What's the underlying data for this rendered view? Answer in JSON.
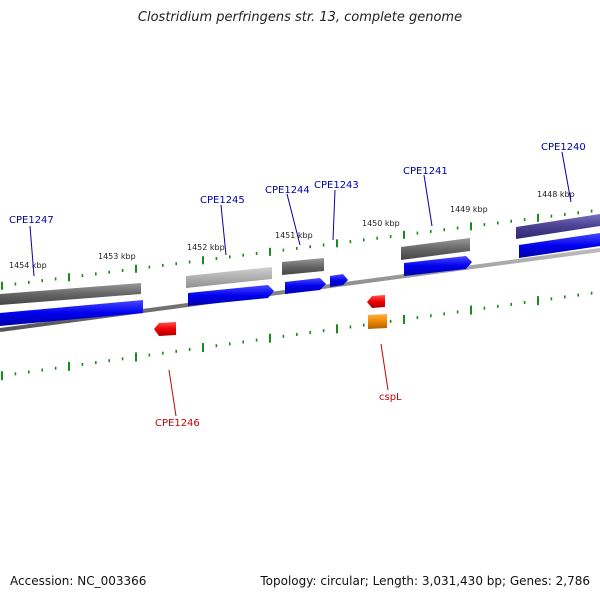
{
  "title": "Clostridium perfringens str. 13, complete genome",
  "footer": {
    "accession": "Accession: NC_003366",
    "summary": "Topology: circular; Length: 3,031,430 bp; Genes: 2,786"
  },
  "colors": {
    "forward_cds": "#0000ee",
    "gene_grey": "#666666",
    "gene_light_grey": "#b0b0b0",
    "gene_purple": "#4a4090",
    "reverse_cds": "#ee0000",
    "orange": "#ee8800",
    "tick": "#1a8a1a",
    "backbone": "#888888",
    "label_blue": "#0000aa",
    "label_red": "#cc0000"
  },
  "scale_labels": [
    "1454 kbp",
    "1453 kbp",
    "1452 kbp",
    "1451 kbp",
    "1450 kbp",
    "1449 kbp",
    "1448 kbp"
  ],
  "gene_labels": [
    {
      "id": "CPE1247",
      "color": "blue"
    },
    {
      "id": "CPE1245",
      "color": "blue"
    },
    {
      "id": "CPE1244",
      "color": "blue"
    },
    {
      "id": "CPE1243",
      "color": "blue"
    },
    {
      "id": "CPE1241",
      "color": "blue"
    },
    {
      "id": "CPE1240",
      "color": "blue"
    },
    {
      "id": "CPE1246",
      "color": "red"
    },
    {
      "id": "cspL",
      "color": "red"
    }
  ]
}
